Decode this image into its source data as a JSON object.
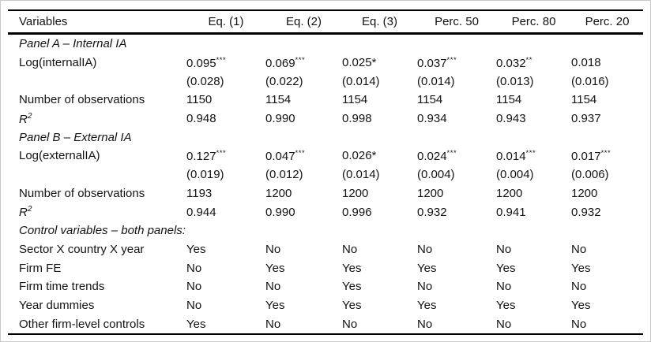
{
  "page": {
    "background": "#ffffff",
    "frame_border_color": "#c8c8c8",
    "rule_color": "#000000",
    "text_color": "#131313"
  },
  "table": {
    "columns": [
      "Variables",
      "Eq. (1)",
      "Eq. (2)",
      "Eq. (3)",
      "Perc. 50",
      "Perc. 80",
      "Perc. 20"
    ],
    "r_squared_label": {
      "base": "R",
      "sup": "2"
    },
    "panels": [
      {
        "title": "Panel A – Internal IA",
        "variable_label": "Log(internalIA)",
        "coefficients": [
          "0.095",
          "0.069",
          "0.025",
          "0.037",
          "0.032",
          "0.018"
        ],
        "significance": [
          "***",
          "***",
          "*",
          "***",
          "**",
          ""
        ],
        "std_errors": [
          "(0.028)",
          "(0.022)",
          "(0.014)",
          "(0.014)",
          "(0.013)",
          "(0.016)"
        ],
        "observations_label": "Number of observations",
        "observations": [
          "1150",
          "1154",
          "1154",
          "1154",
          "1154",
          "1154"
        ],
        "r_squared": [
          "0.948",
          "0.990",
          "0.998",
          "0.934",
          "0.943",
          "0.937"
        ]
      },
      {
        "title": "Panel B – External IA",
        "variable_label": "Log(externalIA)",
        "coefficients": [
          "0.127",
          "0.047",
          "0.026",
          "0.024",
          "0.014",
          "0.017"
        ],
        "significance": [
          "***",
          "***",
          "*",
          "***",
          "***",
          "***"
        ],
        "std_errors": [
          "(0.019)",
          "(0.012)",
          "(0.014)",
          "(0.004)",
          "(0.004)",
          "(0.006)"
        ],
        "observations_label": "Number of observations",
        "observations": [
          "1193",
          "1200",
          "1200",
          "1200",
          "1200",
          "1200"
        ],
        "r_squared": [
          "0.944",
          "0.990",
          "0.996",
          "0.932",
          "0.941",
          "0.932"
        ]
      }
    ],
    "controls": {
      "title": "Control variables – both panels:",
      "rows": [
        {
          "label": "Sector X country X year",
          "values": [
            "Yes",
            "No",
            "No",
            "No",
            "No",
            "No"
          ]
        },
        {
          "label": "Firm FE",
          "values": [
            "No",
            "Yes",
            "Yes",
            "Yes",
            "Yes",
            "Yes"
          ]
        },
        {
          "label": "Firm time trends",
          "values": [
            "No",
            "No",
            "Yes",
            "No",
            "No",
            "No"
          ]
        },
        {
          "label": "Year dummies",
          "values": [
            "No",
            "Yes",
            "Yes",
            "Yes",
            "Yes",
            "Yes"
          ]
        },
        {
          "label": "Other firm-level controls",
          "values": [
            "Yes",
            "No",
            "No",
            "No",
            "No",
            "No"
          ]
        }
      ]
    }
  }
}
